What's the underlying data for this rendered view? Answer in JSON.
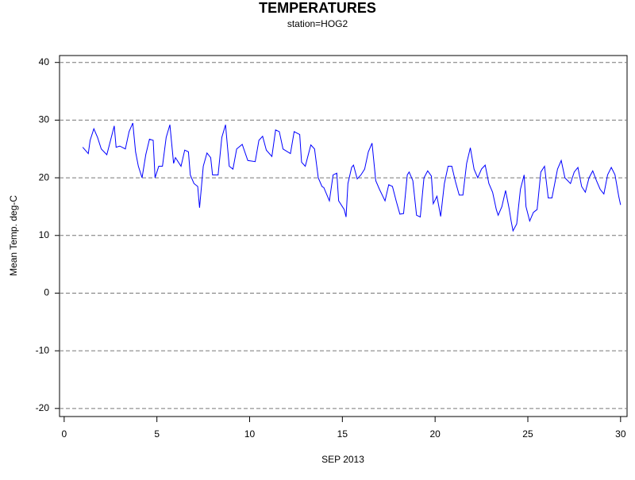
{
  "chart_data": {
    "type": "line",
    "title": "TEMPERATURES",
    "subtitle": "station=HOG2",
    "x_label": "SEP 2013",
    "y_label": "Mean Temp. deg-C",
    "color": "#0000ff",
    "grid": true,
    "xlim": [
      -0.25,
      30.35
    ],
    "ylim": [
      -21.4,
      41.2
    ],
    "xticks": [
      0,
      5,
      10,
      15,
      20,
      25,
      30
    ],
    "yticks": [
      -20,
      -10,
      0,
      10,
      20,
      30,
      40
    ],
    "x": [
      1.0,
      1.3,
      1.4,
      1.6,
      1.8,
      2.0,
      2.3,
      2.5,
      2.7,
      2.8,
      3.0,
      3.3,
      3.5,
      3.7,
      3.85,
      4.0,
      4.2,
      4.4,
      4.6,
      4.8,
      4.9,
      5.1,
      5.3,
      5.5,
      5.7,
      5.9,
      6.0,
      6.3,
      6.5,
      6.7,
      6.8,
      7.0,
      7.2,
      7.3,
      7.5,
      7.7,
      7.9,
      8.0,
      8.3,
      8.5,
      8.7,
      8.9,
      9.1,
      9.3,
      9.6,
      9.9,
      10.3,
      10.5,
      10.7,
      10.9,
      11.2,
      11.4,
      11.6,
      11.8,
      12.2,
      12.4,
      12.7,
      12.8,
      13.0,
      13.3,
      13.5,
      13.7,
      13.9,
      14.0,
      14.3,
      14.5,
      14.7,
      14.8,
      15.1,
      15.2,
      15.3,
      15.5,
      15.6,
      15.8,
      16.0,
      16.2,
      16.4,
      16.6,
      16.8,
      17.0,
      17.3,
      17.5,
      17.7,
      17.9,
      18.1,
      18.3,
      18.5,
      18.6,
      18.8,
      19.0,
      19.2,
      19.4,
      19.6,
      19.8,
      19.9,
      20.1,
      20.3,
      20.5,
      20.7,
      20.9,
      21.1,
      21.3,
      21.5,
      21.7,
      21.9,
      22.1,
      22.3,
      22.5,
      22.7,
      22.9,
      23.1,
      23.3,
      23.4,
      23.6,
      23.8,
      24.0,
      24.1,
      24.2,
      24.4,
      24.6,
      24.8,
      24.9,
      25.1,
      25.3,
      25.5,
      25.7,
      25.9,
      26.1,
      26.3,
      26.6,
      26.8,
      27.0,
      27.3,
      27.5,
      27.7,
      27.9,
      28.1,
      28.3,
      28.5,
      28.7,
      28.9,
      29.1,
      29.3,
      29.5,
      29.7,
      29.9,
      30.0
    ],
    "values": [
      25.3,
      24.2,
      26.5,
      28.5,
      27,
      25,
      24,
      26.5,
      29,
      25.3,
      25.5,
      25,
      28,
      29.5,
      24.5,
      22,
      20,
      24,
      26.7,
      26.5,
      20,
      22,
      22,
      27,
      29.2,
      22.5,
      23.5,
      22,
      24.8,
      24.5,
      20.5,
      19,
      18.5,
      14.8,
      22,
      24.3,
      23.5,
      20.5,
      20.5,
      27,
      29.2,
      22,
      21.5,
      25,
      25.8,
      23,
      22.8,
      26.5,
      27.2,
      24.8,
      23.7,
      28.3,
      28,
      25,
      24.2,
      28,
      27.5,
      22.7,
      22,
      25.7,
      25,
      20,
      18.5,
      18.3,
      16,
      20.5,
      20.8,
      16,
      14.5,
      13.2,
      19,
      21.8,
      22.2,
      19.8,
      20.5,
      21.5,
      24.5,
      26,
      19.5,
      18,
      16,
      18.8,
      18.5,
      16,
      13.7,
      13.8,
      20.5,
      21,
      19.5,
      13.5,
      13.2,
      20,
      21.2,
      20.3,
      15.5,
      16.8,
      13.3,
      19,
      22,
      22,
      19.3,
      17,
      17,
      22.5,
      25.2,
      21.5,
      20,
      21.5,
      22.2,
      19,
      17.5,
      14.5,
      13.5,
      15,
      17.8,
      14.5,
      12.5,
      10.8,
      12,
      18,
      20.5,
      15,
      12.5,
      14,
      14.5,
      21,
      22,
      16.5,
      16.5,
      21.5,
      23,
      20,
      19,
      21,
      21.8,
      18.5,
      17.5,
      20,
      21.2,
      19.5,
      18,
      17.2,
      20.5,
      21.8,
      20.5,
      16.8,
      15.3
    ]
  }
}
